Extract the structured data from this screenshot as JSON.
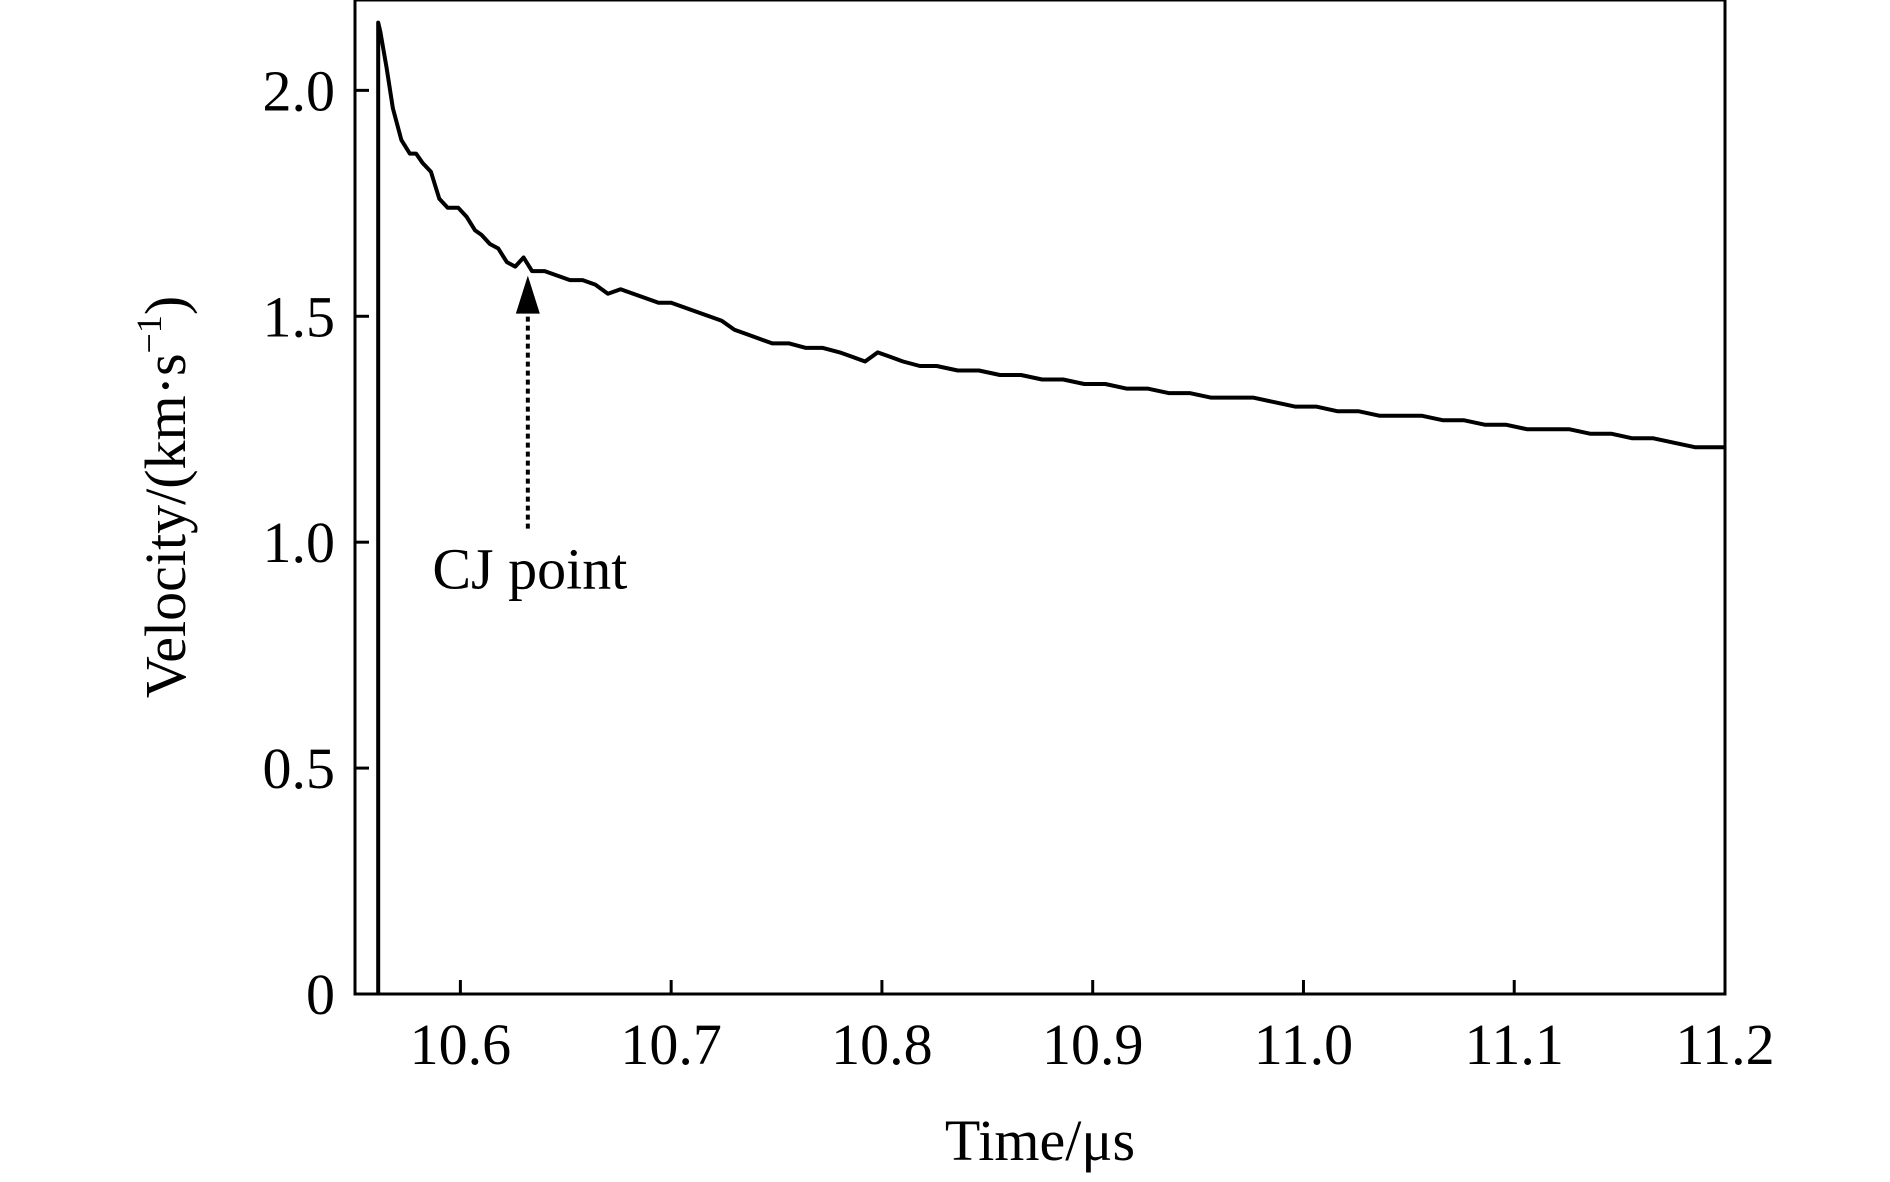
{
  "chart_data": {
    "type": "line",
    "xlabel": "Time/μs",
    "ylabel_main": "Velocity/(km·s",
    "ylabel_sup": "−1",
    "ylabel_close": ")",
    "xlim": [
      10.55,
      11.2
    ],
    "ylim": [
      0,
      2.2
    ],
    "xticks": [
      10.6,
      10.7,
      10.8,
      10.9,
      11.0,
      11.1,
      11.2
    ],
    "xtick_labels": [
      "10.6",
      "10.7",
      "10.8",
      "10.9",
      "11.0",
      "11.1",
      "11.2"
    ],
    "yticks": [
      0,
      0.5,
      1.0,
      1.5,
      2.0
    ],
    "ytick_labels": [
      "0",
      "0.5",
      "1.0",
      "1.5",
      "2.0"
    ],
    "grid": false,
    "annotation": {
      "text": "CJ point",
      "x": 10.632,
      "y": 1.59,
      "from_y": 1.03
    },
    "series": [
      {
        "x": [
          10.561,
          10.561,
          10.562,
          10.565,
          10.568,
          10.572,
          10.576,
          10.579,
          10.582,
          10.586,
          10.59,
          10.594,
          10.599,
          10.603,
          10.607,
          10.61,
          10.614,
          10.618,
          10.622,
          10.626,
          10.63,
          10.634,
          10.64,
          10.646,
          10.652,
          10.658,
          10.664,
          10.67,
          10.676,
          10.682,
          10.688,
          10.694,
          10.7,
          10.706,
          10.712,
          10.718,
          10.724,
          10.73,
          10.736,
          10.742,
          10.748,
          10.756,
          10.764,
          10.772,
          10.78,
          10.786,
          10.792,
          10.798,
          10.804,
          10.81,
          10.818,
          10.826,
          10.836,
          10.846,
          10.856,
          10.866,
          10.876,
          10.886,
          10.896,
          10.906,
          10.916,
          10.926,
          10.936,
          10.946,
          10.956,
          10.966,
          10.976,
          10.986,
          10.996,
          11.006,
          11.016,
          11.026,
          11.036,
          11.046,
          11.056,
          11.066,
          11.076,
          11.086,
          11.096,
          11.106,
          11.116,
          11.126,
          11.136,
          11.146,
          11.156,
          11.166,
          11.176,
          11.186,
          11.194,
          11.2
        ],
        "y": [
          0,
          2.15,
          2.13,
          2.05,
          1.96,
          1.89,
          1.86,
          1.86,
          1.84,
          1.82,
          1.76,
          1.74,
          1.74,
          1.72,
          1.69,
          1.68,
          1.66,
          1.65,
          1.62,
          1.61,
          1.63,
          1.6,
          1.6,
          1.59,
          1.58,
          1.58,
          1.57,
          1.55,
          1.56,
          1.55,
          1.54,
          1.53,
          1.53,
          1.52,
          1.51,
          1.5,
          1.49,
          1.47,
          1.46,
          1.45,
          1.44,
          1.44,
          1.43,
          1.43,
          1.42,
          1.41,
          1.4,
          1.42,
          1.41,
          1.4,
          1.39,
          1.39,
          1.38,
          1.38,
          1.37,
          1.37,
          1.36,
          1.36,
          1.35,
          1.35,
          1.34,
          1.34,
          1.33,
          1.33,
          1.32,
          1.32,
          1.32,
          1.31,
          1.3,
          1.3,
          1.29,
          1.29,
          1.28,
          1.28,
          1.28,
          1.27,
          1.27,
          1.26,
          1.26,
          1.25,
          1.25,
          1.25,
          1.24,
          1.24,
          1.23,
          1.23,
          1.22,
          1.21,
          1.21,
          1.21
        ]
      }
    ]
  }
}
